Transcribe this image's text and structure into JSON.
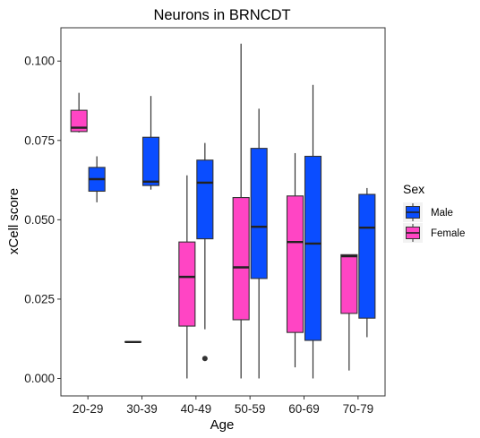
{
  "chart_data": {
    "type": "boxplot",
    "title": "Neurons in BRNCDT",
    "xlabel": "Age",
    "ylabel": "xCell score",
    "categories": [
      "20-29",
      "30-39",
      "40-49",
      "50-59",
      "60-69",
      "70-79"
    ],
    "ylim": [
      -0.0055,
      0.1105
    ],
    "yticks": [
      0.0,
      0.025,
      0.05,
      0.075,
      0.1
    ],
    "ytick_labels": [
      "0.000",
      "0.025",
      "0.050",
      "0.075",
      "0.100"
    ],
    "grid": false,
    "legend": {
      "title": "Sex",
      "position": "right",
      "entries": [
        {
          "name": "Male",
          "color": "#0a4dff"
        },
        {
          "name": "Female",
          "color": "#ff45c4"
        }
      ]
    },
    "series": [
      {
        "name": "Female",
        "color": "#ff45c4",
        "boxes": [
          {
            "category": "20-29",
            "min": 0.0775,
            "q1": 0.0778,
            "median": 0.079,
            "q3": 0.0845,
            "max": 0.09,
            "outliers": []
          },
          {
            "category": "30-39",
            "min": 0.0115,
            "q1": 0.0115,
            "median": 0.0115,
            "q3": 0.0115,
            "max": 0.0115,
            "outliers": []
          },
          {
            "category": "40-49",
            "min": 0.0,
            "q1": 0.0165,
            "median": 0.032,
            "q3": 0.043,
            "max": 0.064,
            "outliers": []
          },
          {
            "category": "50-59",
            "min": 0.0,
            "q1": 0.0185,
            "median": 0.035,
            "q3": 0.057,
            "max": 0.1055,
            "outliers": []
          },
          {
            "category": "60-69",
            "min": 0.0035,
            "q1": 0.0145,
            "median": 0.043,
            "q3": 0.0575,
            "max": 0.071,
            "outliers": []
          },
          {
            "category": "70-79",
            "min": 0.0025,
            "q1": 0.0205,
            "median": 0.0385,
            "q3": 0.039,
            "max": 0.039,
            "outliers": []
          }
        ]
      },
      {
        "name": "Male",
        "color": "#0a4dff",
        "boxes": [
          {
            "category": "20-29",
            "min": 0.0555,
            "q1": 0.059,
            "median": 0.0628,
            "q3": 0.0665,
            "max": 0.07,
            "outliers": []
          },
          {
            "category": "30-39",
            "min": 0.0595,
            "q1": 0.0608,
            "median": 0.062,
            "q3": 0.076,
            "max": 0.089,
            "outliers": []
          },
          {
            "category": "40-49",
            "min": 0.0155,
            "q1": 0.044,
            "median": 0.0617,
            "q3": 0.0688,
            "max": 0.0742,
            "outliers": [
              0.0063
            ]
          },
          {
            "category": "50-59",
            "min": 0.0,
            "q1": 0.0315,
            "median": 0.0478,
            "q3": 0.0725,
            "max": 0.085,
            "outliers": []
          },
          {
            "category": "60-69",
            "min": 0.0,
            "q1": 0.012,
            "median": 0.0425,
            "q3": 0.07,
            "max": 0.0925,
            "outliers": []
          },
          {
            "category": "70-79",
            "min": 0.013,
            "q1": 0.019,
            "median": 0.0475,
            "q3": 0.058,
            "max": 0.06,
            "outliers": []
          }
        ]
      }
    ]
  }
}
